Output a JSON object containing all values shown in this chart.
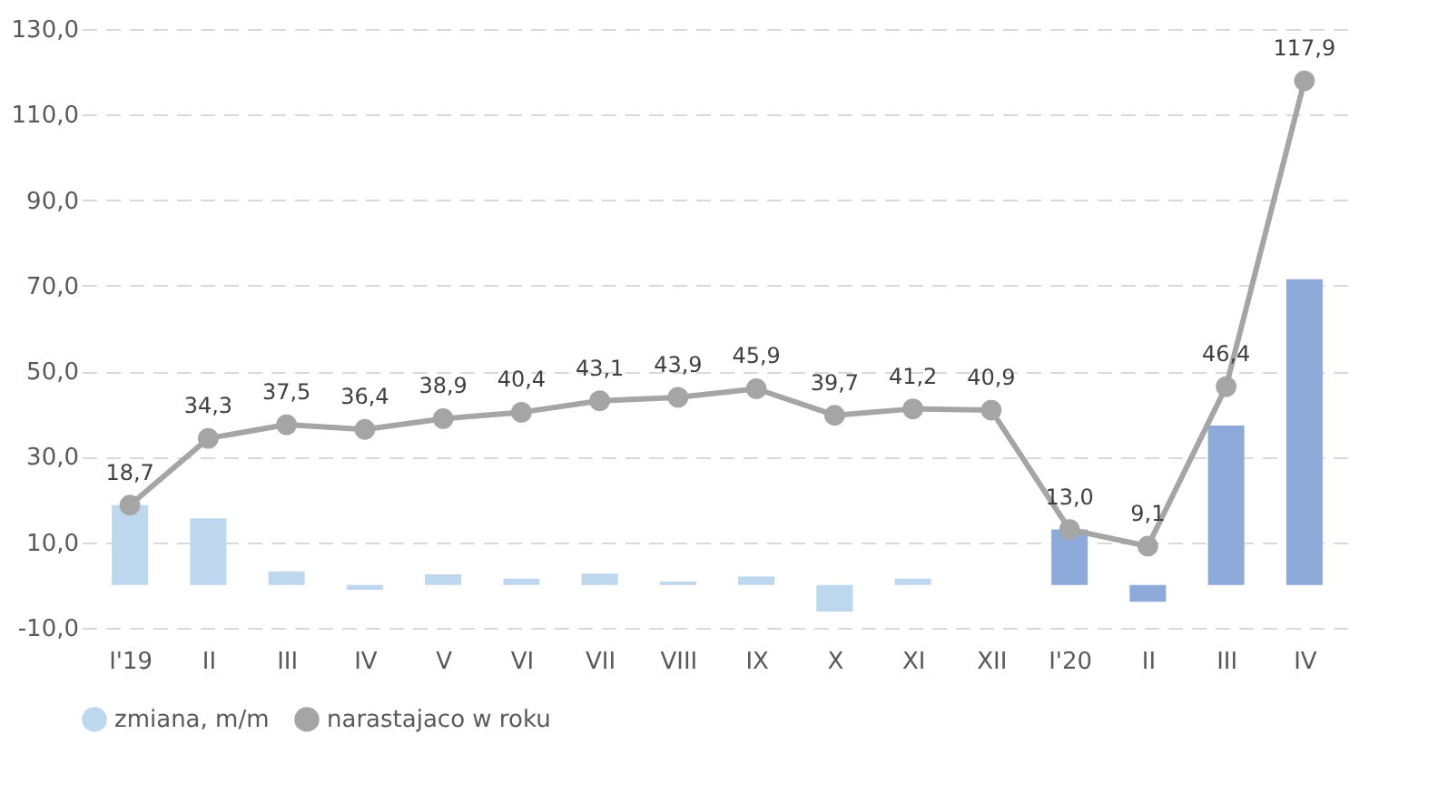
{
  "chart_data": {
    "type": "bar",
    "categories": [
      "I'19",
      "II",
      "III",
      "IV",
      "V",
      "VI",
      "VII",
      "VIII",
      "IX",
      "X",
      "XI",
      "XII",
      "I'20",
      "II",
      "III",
      "IV"
    ],
    "ylim": [
      -10,
      130
    ],
    "yticks": [
      {
        "value": -10,
        "label": "-10,0"
      },
      {
        "value": 10,
        "label": "10,0"
      },
      {
        "value": 30,
        "label": "30,0"
      },
      {
        "value": 50,
        "label": "50,0"
      },
      {
        "value": 70,
        "label": "70,0"
      },
      {
        "value": 90,
        "label": "90,0"
      },
      {
        "value": 110,
        "label": "110,0"
      },
      {
        "value": 130,
        "label": "130,0"
      }
    ],
    "grid": "y",
    "legend": "bottom",
    "series": [
      {
        "name": "zmiana, m/m",
        "color": "#bdd7ee",
        "colors": [
          "#bdd7ee",
          "#bdd7ee",
          "#bdd7ee",
          "#bdd7ee",
          "#bdd7ee",
          "#bdd7ee",
          "#bdd7ee",
          "#bdd7ee",
          "#bdd7ee",
          "#bdd7ee",
          "#bdd7ee",
          "#bdd7ee",
          "#8eaadb",
          "#8eaadb",
          "#8eaadb",
          "#8eaadb"
        ],
        "values": [
          18.7,
          15.6,
          3.2,
          -1.1,
          2.5,
          1.5,
          2.7,
          0.8,
          2.0,
          -6.2,
          1.5,
          null,
          13.0,
          -3.9,
          37.3,
          71.5
        ]
      },
      {
        "name": "narastajaco w roku",
        "type": "line",
        "color": "#a5a5a5",
        "marker": "circle",
        "values": [
          18.7,
          34.3,
          37.5,
          36.4,
          38.9,
          40.4,
          43.1,
          43.9,
          45.9,
          39.7,
          41.2,
          40.9,
          13.0,
          9.1,
          46.4,
          117.9
        ],
        "value_labels": [
          "18,7",
          "34,3",
          "37,5",
          "36,4",
          "38,9",
          "40,4",
          "43,1",
          "43,9",
          "45,9",
          "39,7",
          "41,2",
          "40,9",
          "13,0",
          "9,1",
          "46,4",
          "117,9"
        ]
      }
    ]
  }
}
